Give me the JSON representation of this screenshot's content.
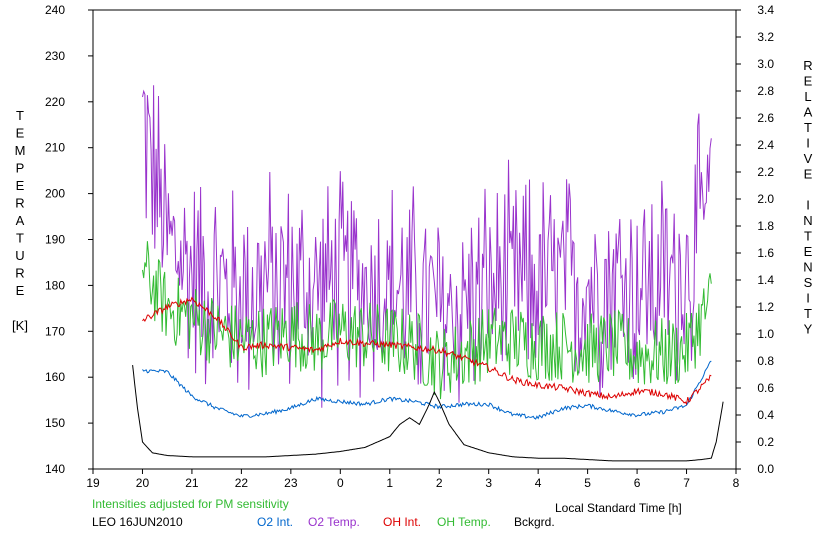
{
  "chart_data": {
    "type": "line",
    "title": "",
    "station_date": "LEO 16JUN2010",
    "note": "Intensities adjusted for PM sensitivity",
    "xlabel": "Local Standard Time [h]",
    "ylabel_left_letters": [
      "T",
      "E",
      "M",
      "P",
      "E",
      "R",
      "A",
      "T",
      "U",
      "R",
      "E",
      "",
      "[K]"
    ],
    "ylabel_right_letters": [
      "R",
      "E",
      "L",
      "A",
      "T",
      "I",
      "V",
      "E",
      "",
      "I",
      "N",
      "T",
      "E",
      "N",
      "S",
      "I",
      "T",
      "Y"
    ],
    "x_ticks": [
      19,
      20,
      21,
      22,
      23,
      0,
      1,
      2,
      3,
      4,
      5,
      6,
      7,
      8
    ],
    "xlim": [
      19,
      8
    ],
    "yleft_ticks": [
      140,
      150,
      160,
      170,
      180,
      190,
      200,
      210,
      220,
      230,
      240
    ],
    "yleft_lim": [
      140,
      240
    ],
    "yright_ticks": [
      "0.0",
      "0.2",
      "0.4",
      "0.6",
      "0.8",
      "1.0",
      "1.2",
      "1.4",
      "1.6",
      "1.8",
      "2.0",
      "2.2",
      "2.4",
      "2.6",
      "2.8",
      "3.0",
      "3.2",
      "3.4"
    ],
    "yright_lim": [
      0,
      3.4
    ],
    "grid": false,
    "legend_position": "bottom",
    "series": [
      {
        "name": "O2 Int.",
        "axis": "right",
        "color": "#0066cc",
        "x": [
          20.0,
          20.5,
          21.0,
          21.5,
          22.0,
          22.5,
          23.0,
          23.5,
          24.0,
          24.5,
          25.0,
          25.5,
          26.0,
          26.5,
          27.0,
          27.5,
          28.0,
          28.5,
          29.0,
          29.5,
          30.0,
          30.5,
          31.0,
          31.5
        ],
        "y": [
          0.73,
          0.72,
          0.54,
          0.45,
          0.39,
          0.41,
          0.45,
          0.52,
          0.5,
          0.48,
          0.52,
          0.5,
          0.46,
          0.48,
          0.48,
          0.4,
          0.38,
          0.45,
          0.47,
          0.43,
          0.4,
          0.42,
          0.47,
          0.8
        ]
      },
      {
        "name": "O2 Temp.",
        "axis": "left",
        "color": "#9933cc",
        "x": [
          20.0,
          20.5,
          21.0,
          21.5,
          22.0,
          22.5,
          23.0,
          23.5,
          24.0,
          24.5,
          25.0,
          25.5,
          26.0,
          26.5,
          27.0,
          27.5,
          28.0,
          28.5,
          29.0,
          29.5,
          30.0,
          30.5,
          31.0,
          31.5
        ],
        "y": [
          216,
          190,
          183,
          180,
          178,
          181,
          180,
          179,
          181,
          180,
          180,
          178,
          174,
          176,
          179,
          180,
          181,
          181,
          180,
          182,
          180,
          181,
          183,
          199
        ]
      },
      {
        "name": "OH Int.",
        "axis": "right",
        "color": "#dd0000",
        "x": [
          20.0,
          20.5,
          21.0,
          21.5,
          22.0,
          22.5,
          23.0,
          23.5,
          24.0,
          24.5,
          25.0,
          25.5,
          26.0,
          26.5,
          27.0,
          27.5,
          28.0,
          28.5,
          29.0,
          29.5,
          30.0,
          30.5,
          31.0,
          31.5
        ],
        "y": [
          1.1,
          1.2,
          1.26,
          1.12,
          0.9,
          0.92,
          0.9,
          0.88,
          0.95,
          0.93,
          0.92,
          0.9,
          0.88,
          0.82,
          0.75,
          0.66,
          0.62,
          0.6,
          0.56,
          0.53,
          0.58,
          0.56,
          0.5,
          0.68
        ]
      },
      {
        "name": "OH Temp.",
        "axis": "left",
        "color": "#33bb33",
        "x": [
          20.0,
          20.5,
          21.0,
          21.5,
          22.0,
          22.5,
          23.0,
          23.5,
          24.0,
          24.5,
          25.0,
          25.5,
          26.0,
          26.5,
          27.0,
          27.5,
          28.0,
          28.5,
          29.0,
          29.5,
          30.0,
          30.5,
          31.0,
          31.5
        ],
        "y": [
          184,
          175,
          173,
          170,
          168,
          168,
          170,
          168,
          170,
          169,
          168,
          167,
          163,
          165,
          168,
          168,
          167,
          167,
          166,
          167,
          165,
          165,
          166,
          177
        ]
      },
      {
        "name": "Bckgrd.",
        "axis": "right",
        "color": "#000000",
        "x": [
          19.8,
          19.9,
          20.0,
          20.2,
          20.5,
          21.0,
          21.5,
          22.0,
          22.5,
          23.0,
          23.5,
          24.0,
          24.5,
          25.0,
          25.2,
          25.4,
          25.6,
          25.8,
          25.9,
          26.0,
          26.2,
          26.5,
          27.0,
          27.5,
          28.0,
          28.5,
          29.0,
          29.5,
          30.0,
          30.5,
          31.0,
          31.3,
          31.5,
          31.6,
          31.75
        ],
        "y": [
          0.77,
          0.45,
          0.2,
          0.12,
          0.1,
          0.09,
          0.09,
          0.09,
          0.09,
          0.1,
          0.11,
          0.13,
          0.16,
          0.24,
          0.33,
          0.38,
          0.33,
          0.48,
          0.57,
          0.5,
          0.33,
          0.18,
          0.12,
          0.09,
          0.08,
          0.08,
          0.07,
          0.06,
          0.06,
          0.06,
          0.06,
          0.07,
          0.08,
          0.2,
          0.52
        ]
      }
    ]
  }
}
